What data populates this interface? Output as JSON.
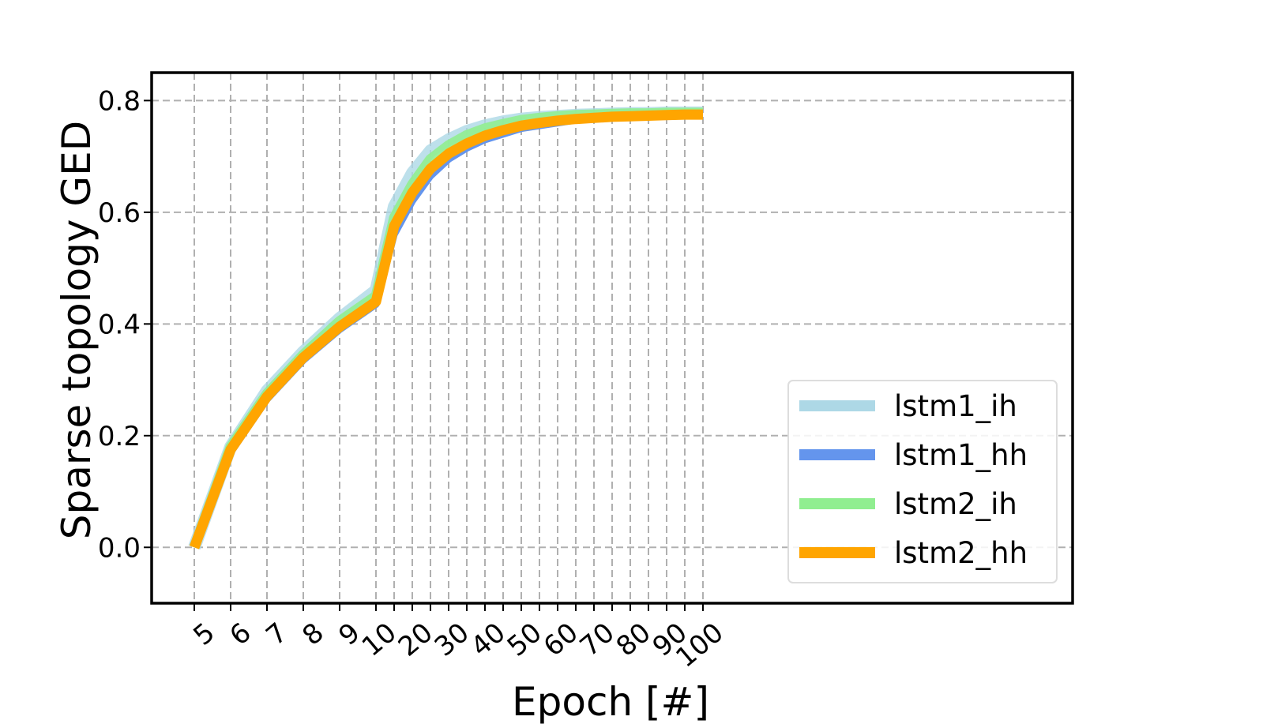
{
  "chart_data": {
    "type": "line",
    "xlabel": "Epoch [#]",
    "ylabel": "Sparse topology GED",
    "x_tick_labels": [
      "5",
      "6",
      "7",
      "8",
      "9",
      "10",
      "20",
      "30",
      "40",
      "50",
      "60",
      "70",
      "80",
      "90",
      "100"
    ],
    "y_tick_labels": [
      "0.0",
      "0.2",
      "0.4",
      "0.6",
      "0.8"
    ],
    "y_ticks": [
      0.0,
      0.2,
      0.4,
      0.6,
      0.8
    ],
    "ylim": [
      -0.1,
      0.85
    ],
    "grid": true,
    "legend_position": "lower-right",
    "x": [
      5,
      6,
      7,
      8,
      9,
      10,
      15,
      20,
      25,
      30,
      35,
      40,
      45,
      50,
      55,
      60,
      65,
      70,
      75,
      80,
      85,
      90,
      95,
      100
    ],
    "series": [
      {
        "name": "lstm1_ih",
        "color": "#add8e6",
        "values": [
          0.0,
          0.18,
          0.28,
          0.35,
          0.41,
          0.46,
          0.61,
          0.67,
          0.71,
          0.73,
          0.745,
          0.755,
          0.762,
          0.767,
          0.77,
          0.772,
          0.774,
          0.775,
          0.776,
          0.777,
          0.777,
          0.778,
          0.778,
          0.778
        ]
      },
      {
        "name": "lstm1_hh",
        "color": "#6495ed",
        "values": [
          0.0,
          0.17,
          0.265,
          0.335,
          0.39,
          0.435,
          0.56,
          0.62,
          0.665,
          0.695,
          0.715,
          0.73,
          0.74,
          0.75,
          0.755,
          0.76,
          0.765,
          0.768,
          0.77,
          0.772,
          0.773,
          0.774,
          0.775,
          0.775
        ]
      },
      {
        "name": "lstm2_ih",
        "color": "#90ee90",
        "values": [
          0.0,
          0.18,
          0.275,
          0.345,
          0.405,
          0.45,
          0.59,
          0.65,
          0.695,
          0.72,
          0.738,
          0.75,
          0.758,
          0.765,
          0.769,
          0.772,
          0.774,
          0.775,
          0.776,
          0.777,
          0.777,
          0.778,
          0.778,
          0.778
        ]
      },
      {
        "name": "lstm2_hh",
        "color": "#ffa500",
        "values": [
          0.0,
          0.175,
          0.27,
          0.34,
          0.395,
          0.44,
          0.575,
          0.635,
          0.678,
          0.705,
          0.723,
          0.737,
          0.747,
          0.755,
          0.76,
          0.764,
          0.767,
          0.769,
          0.771,
          0.772,
          0.773,
          0.774,
          0.775,
          0.775
        ]
      }
    ]
  }
}
